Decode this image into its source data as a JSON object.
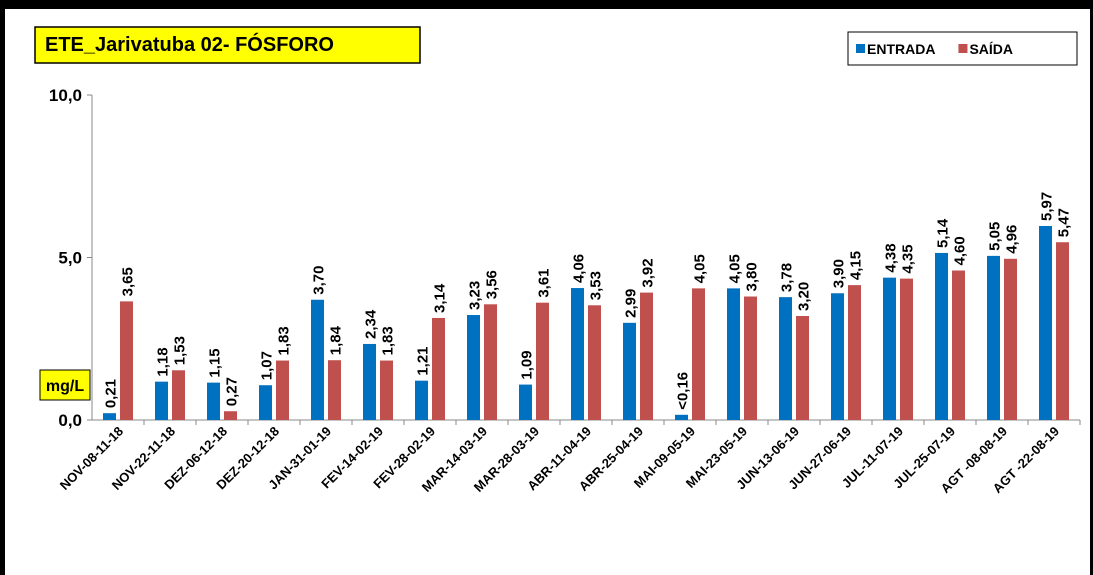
{
  "chart_data": {
    "type": "bar",
    "title": "ETE_Jarivatuba 02- FÓSFORO",
    "y_label": "mg/L",
    "categories": [
      "NOV-08-11-18",
      "NOV-22-11-18",
      "DEZ-06-12-18",
      "DEZ-20-12-18",
      "JAN-31-01-19",
      "FEV-14-02-19",
      "FEV-28-02-19",
      "MAR-14-03-19",
      "MAR-28-03-19",
      "ABR-11-04-19",
      "ABR-25-04-19",
      "MAI-09-05-19",
      "MAI-23-05-19",
      "JUN-13-06-19",
      "JUN-27-06-19",
      "JUL-11-07-19",
      "JUL-25-07-19",
      "AGT -08-08-19",
      "AGT -22-08-19"
    ],
    "series": [
      {
        "name": "ENTRADA",
        "color": "#0070c0",
        "values": [
          0.21,
          1.18,
          1.15,
          1.07,
          3.7,
          2.34,
          1.21,
          3.23,
          1.09,
          4.06,
          2.99,
          0.16,
          4.05,
          3.78,
          3.9,
          4.38,
          5.14,
          5.05,
          5.97
        ],
        "value_labels": [
          "0,21",
          "1,18",
          "1,15",
          "1,07",
          "3,70",
          "2,34",
          "1,21",
          "3,23",
          "1,09",
          "4,06",
          "2,99",
          "<0,16",
          "4,05",
          "3,78",
          "3,90",
          "4,38",
          "5,14",
          "5,05",
          "5,97"
        ]
      },
      {
        "name": "SAÍDA",
        "color": "#c0504d",
        "values": [
          3.65,
          1.53,
          0.27,
          1.83,
          1.84,
          1.83,
          3.14,
          3.56,
          3.61,
          3.53,
          3.92,
          4.05,
          3.8,
          3.2,
          4.15,
          4.35,
          4.6,
          4.96,
          5.47
        ],
        "value_labels": [
          "3,65",
          "1,53",
          "0,27",
          "1,83",
          "1,84",
          "1,83",
          "3,14",
          "3,56",
          "3,61",
          "3,53",
          "3,92",
          "4,05",
          "3,80",
          "3,20",
          "4,15",
          "4,35",
          "4,60",
          "4,96",
          "5,47"
        ]
      }
    ],
    "ylim": [
      0,
      10
    ],
    "yticks": [
      {
        "value": 0,
        "label": "0,0"
      },
      {
        "value": 5,
        "label": "5,0"
      },
      {
        "value": 10,
        "label": "10,0"
      }
    ],
    "legend": "top-right"
  }
}
